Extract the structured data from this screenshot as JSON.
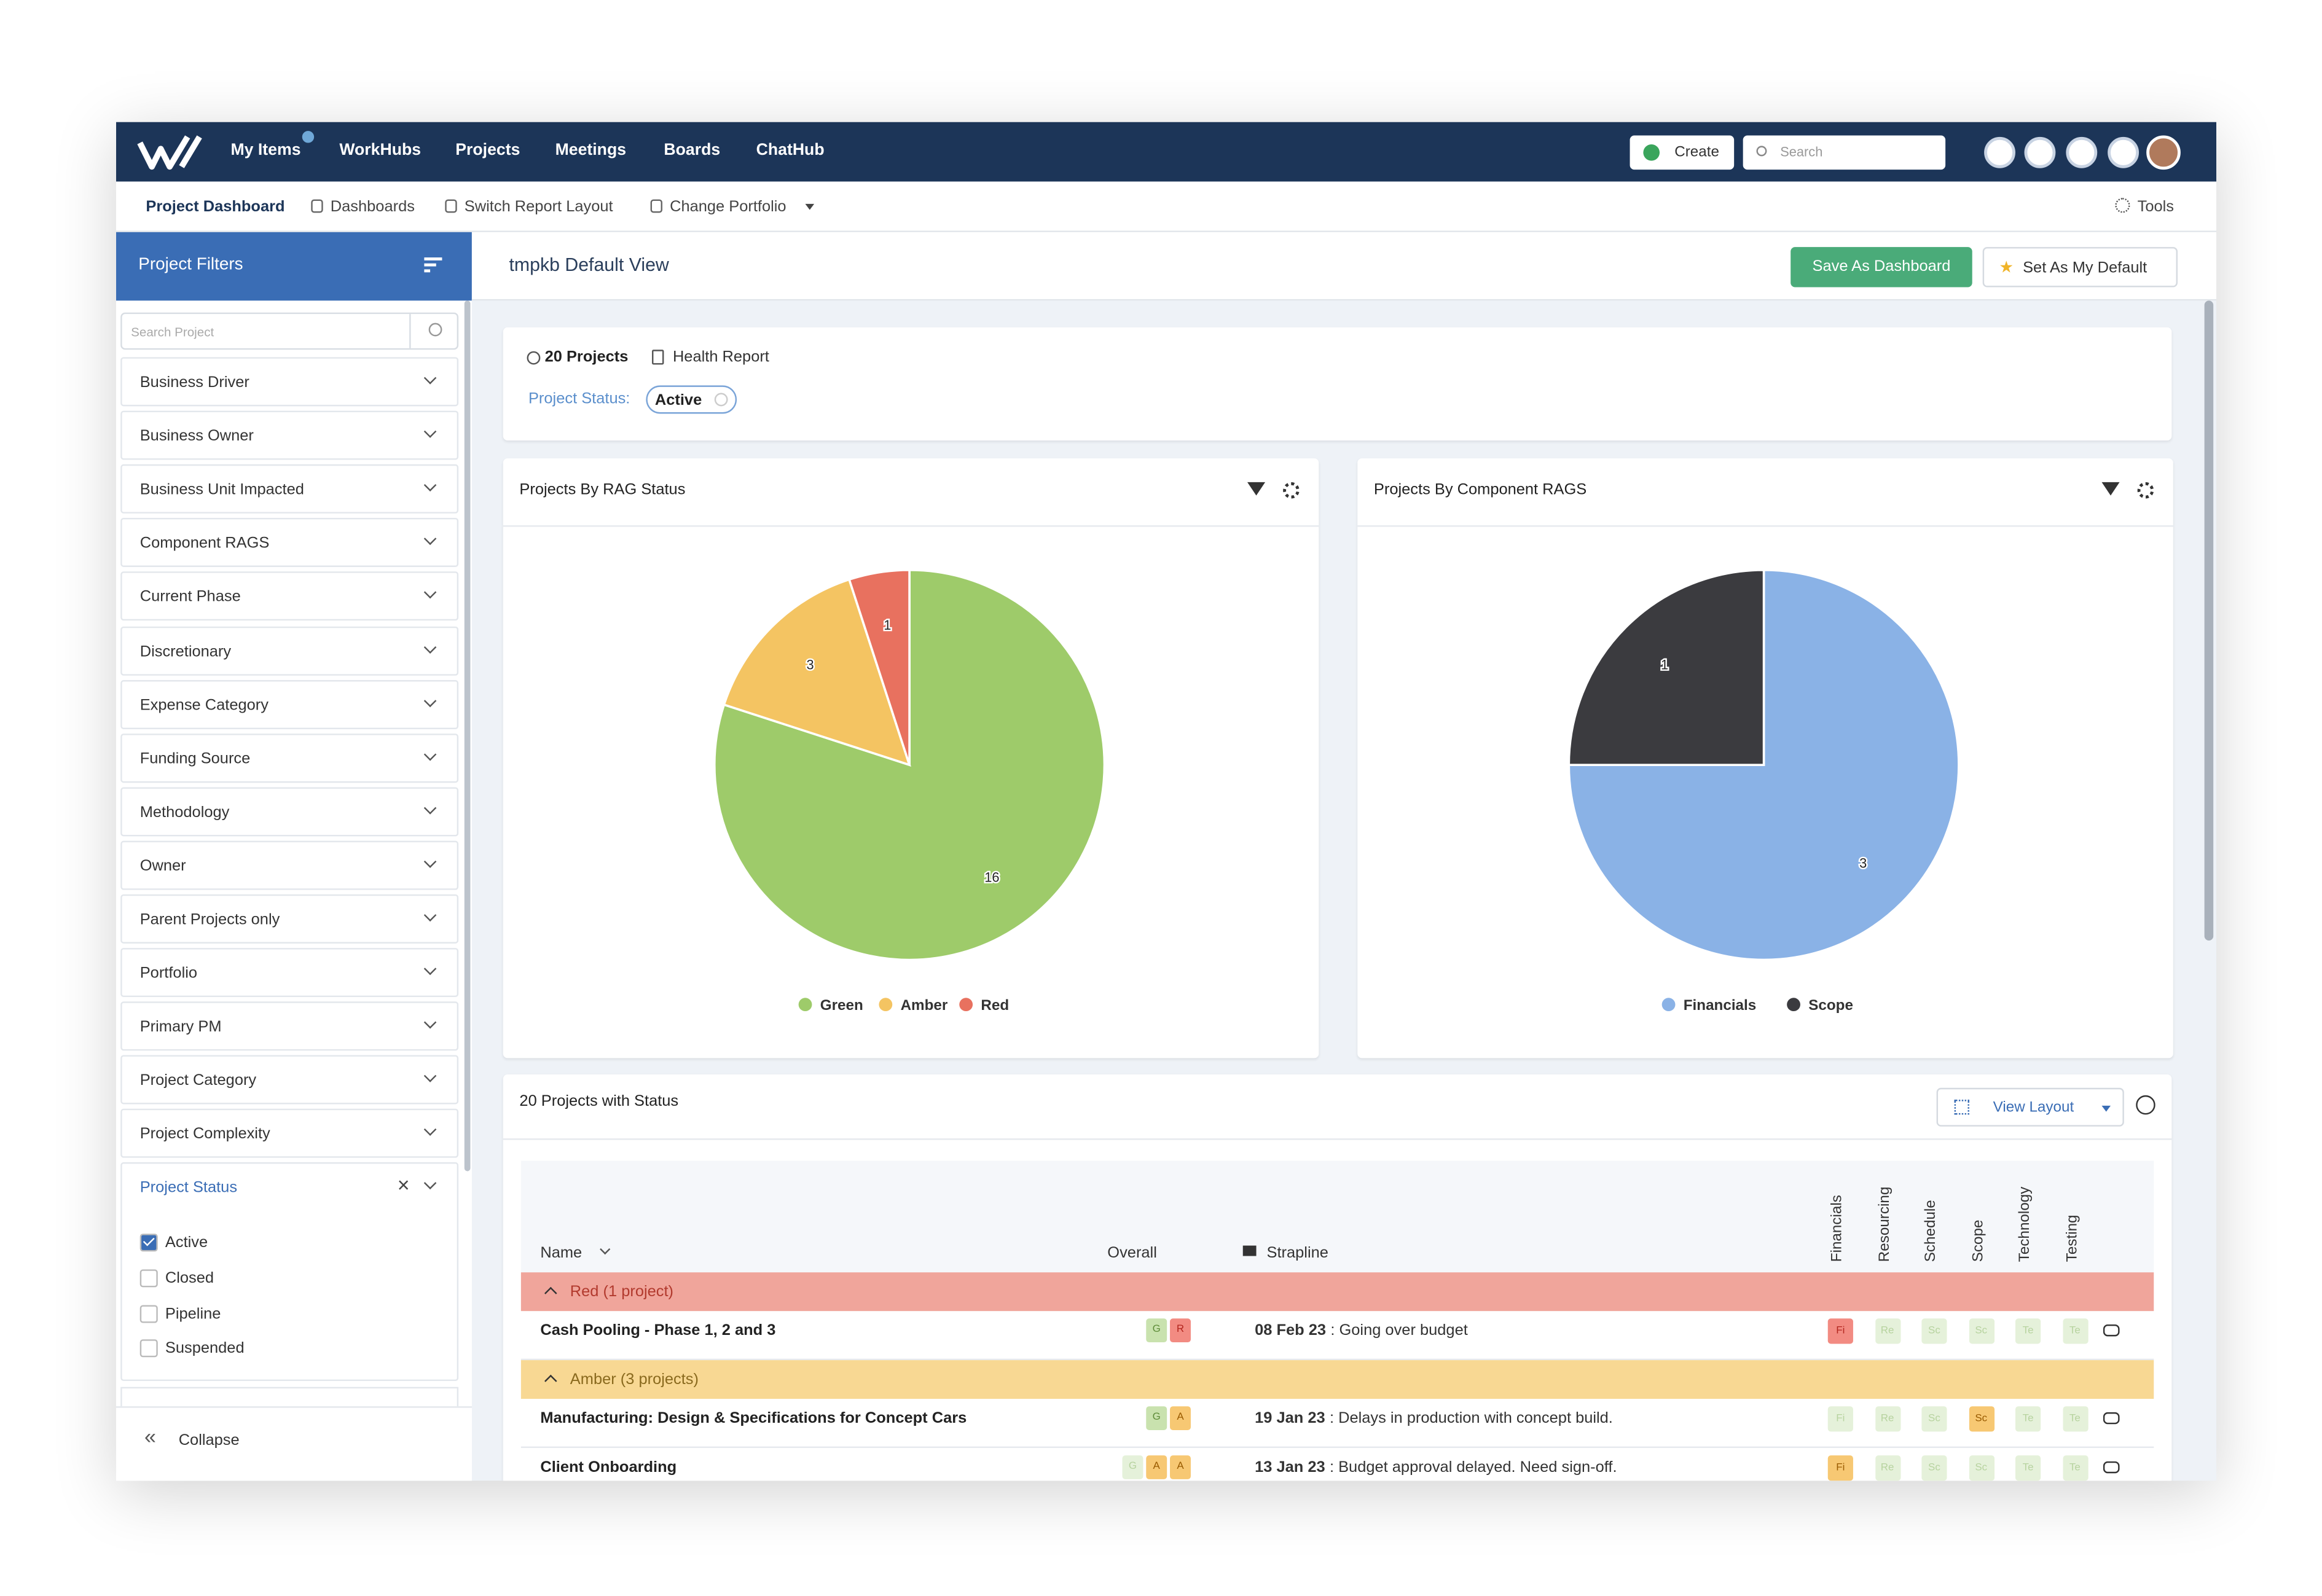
{
  "nav": {
    "items": [
      "My Items",
      "WorkHubs",
      "Projects",
      "Meetings",
      "Boards",
      "ChatHub"
    ],
    "create": "Create",
    "search": "Search"
  },
  "subnav": {
    "items": [
      "Project Dashboard",
      "Dashboards",
      "Switch Report Layout",
      "Change Portfolio"
    ],
    "tools": "Tools"
  },
  "sidebar": {
    "title": "Project Filters",
    "search_placeholder": "Search Project",
    "filters": [
      "Business Driver",
      "Business Owner",
      "Business Unit Impacted",
      "Component RAGS",
      "Current Phase",
      "Discretionary",
      "Expense Category",
      "Funding Source",
      "Methodology",
      "Owner",
      "Parent Projects only",
      "Portfolio",
      "Primary PM",
      "Project Category",
      "Project Complexity"
    ],
    "status_filter": {
      "label": "Project Status",
      "options": [
        {
          "label": "Active",
          "checked": true
        },
        {
          "label": "Closed",
          "checked": false
        },
        {
          "label": "Pipeline",
          "checked": false
        },
        {
          "label": "Suspended",
          "checked": false
        }
      ]
    },
    "collapse": "Collapse"
  },
  "header": {
    "title": "tmpkb Default View",
    "save_button": "Save As Dashboard",
    "default_button": "Set As My Default"
  },
  "summary": {
    "count": "20 Projects",
    "report": "Health Report",
    "status_label": "Project Status:",
    "status_value": "Active"
  },
  "charts": [
    {
      "type": "pie",
      "title": "Projects By RAG Status",
      "categories": [
        "Green",
        "Amber",
        "Red"
      ],
      "values": [
        16,
        3,
        1
      ],
      "colors": [
        "#9ecb6a",
        "#f4c462",
        "#e8715f"
      ]
    },
    {
      "type": "pie",
      "title": "Projects By Component RAGS",
      "categories": [
        "Financials",
        "Scope"
      ],
      "values": [
        3,
        1
      ],
      "colors": [
        "#8ab2e6",
        "#3b3b3f"
      ]
    }
  ],
  "table": {
    "title": "20 Projects with Status",
    "view_layout": "View Layout",
    "columns": {
      "name": "Name",
      "overall": "Overall",
      "strapline": "Strapline",
      "rags": [
        "Financials",
        "Resourcing",
        "Schedule",
        "Scope",
        "Technology",
        "Testing"
      ]
    },
    "groups": [
      {
        "label": "Red (1 project)",
        "color": "red",
        "rows": [
          {
            "name": "Cash Pooling - Phase 1, 2 and 3",
            "overall": [
              {
                "label": "G",
                "status": "green"
              },
              {
                "label": "R",
                "status": "red"
              }
            ],
            "date": "08 Feb 23",
            "text": ": Going over budget",
            "rags": [
              {
                "label": "Fi",
                "status": "red"
              },
              {
                "label": "Re",
                "status": "green-faint"
              },
              {
                "label": "Sc",
                "status": "green-faint"
              },
              {
                "label": "Sc",
                "status": "green-faint"
              },
              {
                "label": "Te",
                "status": "green-faint"
              },
              {
                "label": "Te",
                "status": "green-faint"
              }
            ]
          }
        ]
      },
      {
        "label": "Amber (3 projects)",
        "color": "amber",
        "rows": [
          {
            "name": "Manufacturing: Design & Specifications for Concept Cars",
            "overall": [
              {
                "label": "G",
                "status": "green"
              },
              {
                "label": "A",
                "status": "amber"
              }
            ],
            "date": "19 Jan 23",
            "text": ": Delays in production with concept build.",
            "rags": [
              {
                "label": "Fi",
                "status": "green-faint"
              },
              {
                "label": "Re",
                "status": "green-faint"
              },
              {
                "label": "Sc",
                "status": "green-faint"
              },
              {
                "label": "Sc",
                "status": "amber"
              },
              {
                "label": "Te",
                "status": "green-faint"
              },
              {
                "label": "Te",
                "status": "green-faint"
              }
            ]
          },
          {
            "name": "Client Onboarding",
            "overall": [
              {
                "label": "G",
                "status": "green-faint"
              },
              {
                "label": "A",
                "status": "amber"
              },
              {
                "label": "A",
                "status": "amber"
              }
            ],
            "date": "13 Jan 23",
            "text": ": Budget approval delayed. Need sign-off.",
            "rags": [
              {
                "label": "Fi",
                "status": "amber"
              },
              {
                "label": "Re",
                "status": "green-faint"
              },
              {
                "label": "Sc",
                "status": "green-faint"
              },
              {
                "label": "Sc",
                "status": "green-faint"
              },
              {
                "label": "Te",
                "status": "green-faint"
              },
              {
                "label": "Te",
                "status": "green-faint"
              }
            ]
          }
        ]
      }
    ]
  }
}
